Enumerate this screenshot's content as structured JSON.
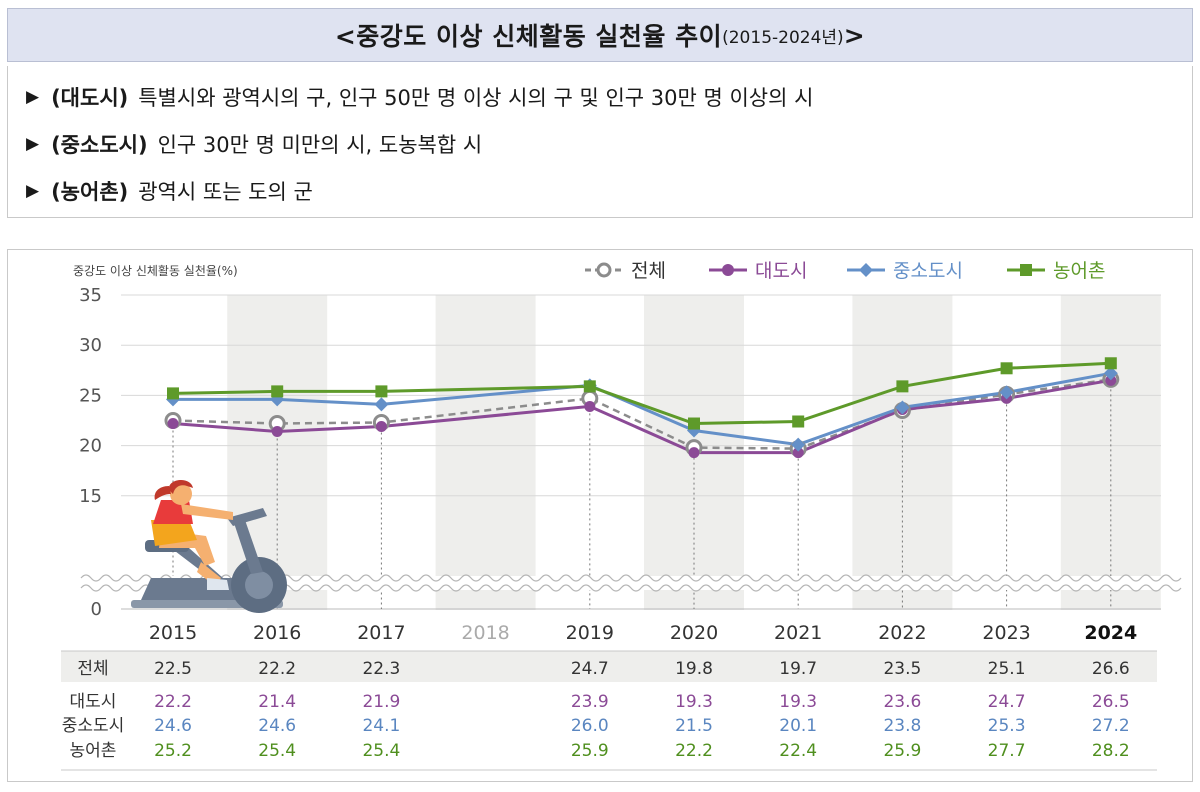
{
  "title": {
    "main": "<중강도 이상 신체활동 실천율 추이",
    "years": "(2015-2024년)",
    "close": ">"
  },
  "definitions": [
    {
      "marker": "▶",
      "term": "(대도시)",
      "text": "특별시와 광역시의 구, 인구 50만 명 이상 시의 구 및 인구 30만 명 이상의 시"
    },
    {
      "marker": "▶",
      "term": "(중소도시)",
      "text": "인구 30만 명 미만의 시, 도농복합 시"
    },
    {
      "marker": "▶",
      "term": "(농어촌)",
      "text": "광역시 또는 도의 군"
    }
  ],
  "chart_data": {
    "type": "line",
    "ylabel": "중강도 이상 신체활동 실천율(%)",
    "categories": [
      "2015",
      "2016",
      "2017",
      "2018",
      "2019",
      "2020",
      "2021",
      "2022",
      "2023",
      "2024"
    ],
    "y_ticks": [
      "35",
      "30",
      "25",
      "20",
      "15",
      "0"
    ],
    "ylim": [
      10,
      35
    ],
    "axis_break": true,
    "legend_position": "top-right",
    "series": [
      {
        "name": "전체",
        "color": "#8c8c8c",
        "style": "dashed",
        "marker": "open-circle",
        "values": [
          22.5,
          22.2,
          22.3,
          null,
          24.7,
          19.8,
          19.7,
          23.5,
          25.1,
          26.6
        ],
        "labels": [
          "22.5",
          "22.2",
          "22.3",
          "",
          "24.7",
          "19.8",
          "19.7",
          "23.5",
          "25.1",
          "26.6"
        ]
      },
      {
        "name": "대도시",
        "color": "#8b4a96",
        "style": "solid",
        "marker": "circle",
        "values": [
          22.2,
          21.4,
          21.9,
          null,
          23.9,
          19.3,
          19.3,
          23.6,
          24.7,
          26.5
        ],
        "labels": [
          "22.2",
          "21.4",
          "21.9",
          "",
          "23.9",
          "19.3",
          "19.3",
          "23.6",
          "24.7",
          "26.5"
        ]
      },
      {
        "name": "중소도시",
        "color": "#6490c8",
        "style": "solid",
        "marker": "diamond",
        "values": [
          24.6,
          24.6,
          24.1,
          null,
          26.0,
          21.5,
          20.1,
          23.8,
          25.3,
          27.2
        ],
        "labels": [
          "24.6",
          "24.6",
          "24.1",
          "",
          "26.0",
          "21.5",
          "20.1",
          "23.8",
          "25.3",
          "27.2"
        ]
      },
      {
        "name": "농어촌",
        "color": "#5e9a2a",
        "style": "solid",
        "marker": "square",
        "values": [
          25.2,
          25.4,
          25.4,
          null,
          25.9,
          22.2,
          22.4,
          25.9,
          27.7,
          28.2
        ],
        "labels": [
          "25.2",
          "25.4",
          "25.4",
          "",
          "25.9",
          "22.2",
          "22.4",
          "25.9",
          "27.7",
          "28.2"
        ]
      }
    ]
  }
}
